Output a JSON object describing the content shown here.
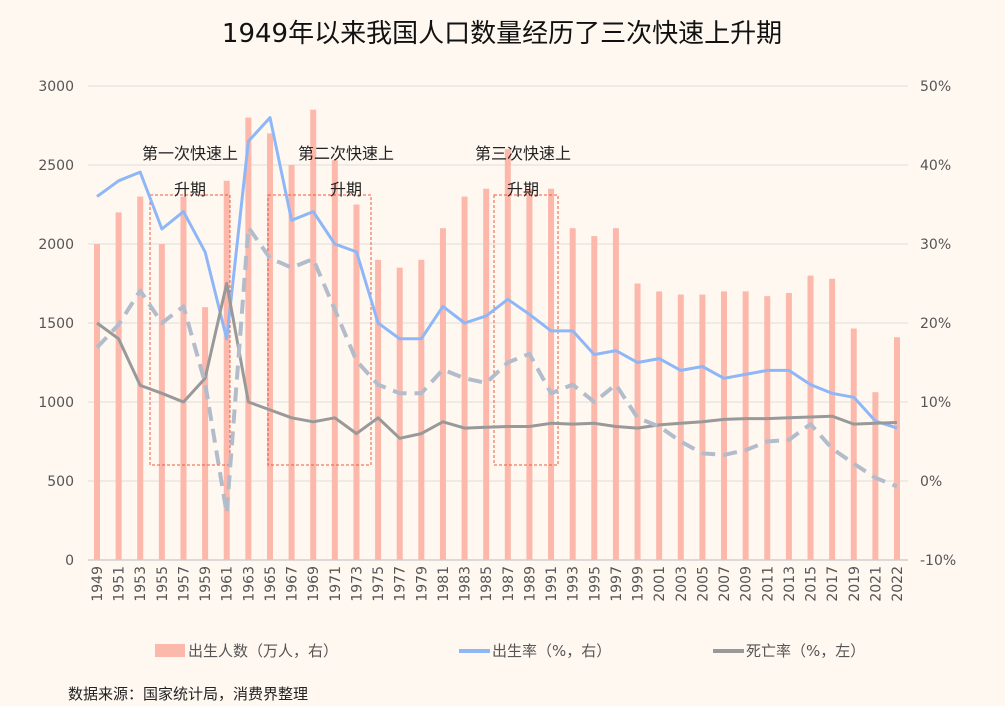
{
  "chart_data": {
    "type": "bar+line",
    "title": "1949年以来我国人口数量经历了三次快速上升期",
    "categories": [
      "1949",
      "1951",
      "1953",
      "1955",
      "1957",
      "1959",
      "1961",
      "1963",
      "1965",
      "1967",
      "1969",
      "1971",
      "1973",
      "1975",
      "1977",
      "1979",
      "1981",
      "1983",
      "1985",
      "1987",
      "1989",
      "1991",
      "1993",
      "1995",
      "1997",
      "1999",
      "2001",
      "2003",
      "2005",
      "2007",
      "2009",
      "2011",
      "2013",
      "2015",
      "2017",
      "2019",
      "2021",
      "2022"
    ],
    "left_axis": {
      "range": [
        0,
        3000
      ],
      "ticks": [
        "0",
        "500",
        "1000",
        "1500",
        "2000",
        "2500",
        "3000"
      ]
    },
    "right_axis": {
      "range": [
        -10,
        50
      ],
      "unit": "%",
      "ticks": [
        "-10%",
        "0%",
        "10%",
        "20%",
        "30%",
        "40%",
        "50%"
      ]
    },
    "grid": true,
    "legend_placement": "bottom",
    "series": [
      {
        "name": "出生人数（万人，右）",
        "type": "bar",
        "axis": "left",
        "color": "#fbb8ab",
        "values": [
          2000,
          2200,
          2300,
          2000,
          2300,
          1600,
          2400,
          2800,
          2700,
          2500,
          2850,
          2530,
          2250,
          1900,
          1850,
          1900,
          2100,
          2300,
          2350,
          2600,
          2350,
          2350,
          2100,
          2050,
          2100,
          1750,
          1700,
          1680,
          1680,
          1700,
          1700,
          1670,
          1690,
          1800,
          1780,
          1465,
          1062,
          1410
        ]
      },
      {
        "name": "出生率（%，右）",
        "type": "line",
        "axis": "right",
        "color": "#8fb7f7",
        "values": [
          36,
          38,
          39.1,
          31.9,
          34.1,
          29,
          18,
          43,
          46,
          33,
          34.1,
          30,
          29,
          20,
          18,
          18,
          22.1,
          20,
          20.9,
          23,
          21.1,
          19,
          19,
          16,
          16.5,
          15,
          15.5,
          14,
          14.5,
          13,
          13.5,
          14,
          14,
          12.2,
          11.1,
          10.6,
          7.6,
          6.7
        ]
      },
      {
        "name": "死亡率（%，左）",
        "type": "line",
        "axis": "right",
        "color": "#999999",
        "values": [
          20,
          18,
          12.1,
          11.1,
          10,
          13,
          25,
          10,
          9,
          8,
          7.5,
          8,
          6,
          8,
          5.4,
          6,
          7.5,
          6.7,
          6.8,
          6.9,
          6.9,
          7.3,
          7.2,
          7.3,
          6.9,
          6.7,
          7.1,
          7.3,
          7.5,
          7.8,
          7.9,
          7.9,
          8,
          8.1,
          8.2,
          7.2,
          7.3,
          7.4
        ]
      },
      {
        "type": "line",
        "style": "dashed",
        "axis": "right",
        "color": "#b3bccb",
        "values": [
          16.9,
          19.8,
          24.1,
          20,
          22.1,
          12.4,
          -4.1,
          32.1,
          28.2,
          27,
          28.1,
          21.7,
          15.2,
          12.2,
          11.1,
          11.1,
          14.1,
          13,
          12.4,
          15,
          16.1,
          11.1,
          12.2,
          10,
          12.2,
          8,
          6.9,
          5,
          3.5,
          3.3,
          3.9,
          5,
          5.2,
          7.2,
          4.1,
          2.2,
          0.4,
          -0.7
        ]
      }
    ],
    "annotations": [
      {
        "line1": "第一次快速上",
        "line2": "升期"
      },
      {
        "line1": "第二次快速上",
        "line2": "升期"
      },
      {
        "line1": "第三次快速上",
        "line2": "升期"
      }
    ],
    "annotation_color": "#f05a3c"
  },
  "source": "数据来源：国家统计局，消费界整理"
}
